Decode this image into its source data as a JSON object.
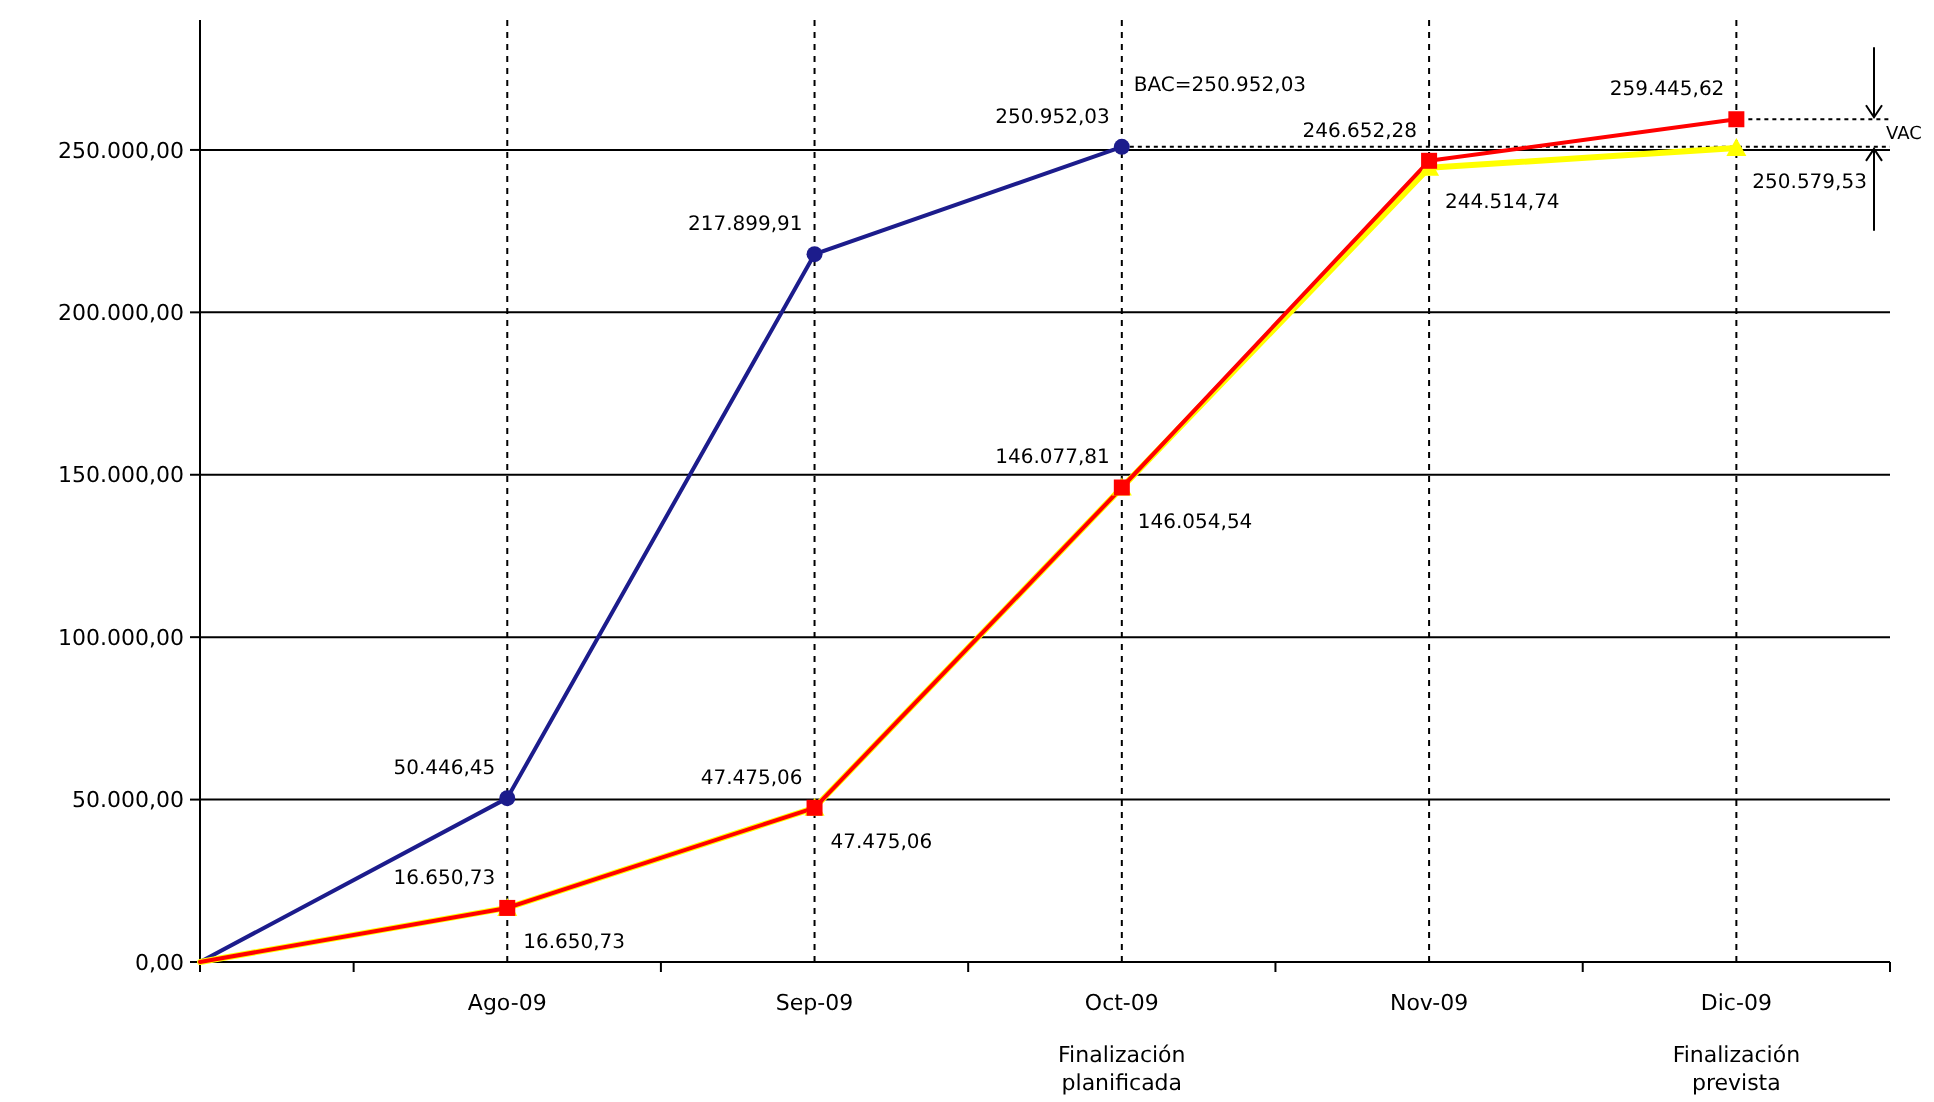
{
  "chart_data": {
    "type": "line",
    "categories": [
      null,
      "Ago-09",
      "Sep-09",
      "Oct-09",
      "Nov-09",
      "Dic-09"
    ],
    "ylim": [
      0,
      290000
    ],
    "yticks": [
      {
        "value": 0,
        "label": "0,00"
      },
      {
        "value": 50000,
        "label": "50.000,00"
      },
      {
        "value": 100000,
        "label": "100.000,00"
      },
      {
        "value": 150000,
        "label": "150.000,00"
      },
      {
        "value": 200000,
        "label": "200.000,00"
      },
      {
        "value": 250000,
        "label": "250.000,00"
      }
    ],
    "grid": true,
    "line_style": "solid",
    "series": [
      {
        "color": "#1c1c8c",
        "marker": "circle",
        "values": [
          0,
          50446.45,
          217899.91,
          250952.03,
          null,
          null
        ],
        "value_labels": [
          null,
          "50.446,45",
          "217.899,91",
          "250.952,03",
          null,
          null
        ]
      },
      {
        "color": "#ffff00",
        "marker": "triangle",
        "values": [
          0,
          16650.73,
          47475.06,
          146054.54,
          244514.74,
          250579.53
        ],
        "value_labels": [
          null,
          "16.650,73",
          "47.475,06",
          "146.054,54",
          "244.514,74",
          "250.579,53"
        ]
      },
      {
        "color": "#ff0000",
        "marker": "square",
        "values": [
          0,
          16650.73,
          47475.06,
          146077.81,
          246652.28,
          259445.62
        ],
        "value_labels": [
          null,
          "16.650,73",
          "47.475,06",
          "146.077,81",
          "246.652,28",
          "259.445,62"
        ]
      }
    ],
    "ref_lines": [
      {
        "axis": "y",
        "value": 250952.03,
        "label": "BAC=250.952,03",
        "line_style": "dotted"
      }
    ],
    "annotations": [
      {
        "text": "VAC",
        "x": "Dic-09",
        "y": 259445.62
      },
      "Finalización planificada",
      "Finalización prevista"
    ]
  }
}
